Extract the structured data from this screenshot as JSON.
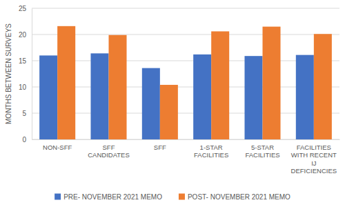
{
  "chart_data": {
    "type": "bar",
    "y_label": "MONTHS BETWEEN SURVEYS",
    "categories": [
      "NON-SFF",
      "SFF CANDIDATES",
      "SFF",
      "1-STAR FACILITIES",
      "5-STAR FACILITIES",
      "FACILITIES WITH RECENT IJ DEFICIENCIES"
    ],
    "series": [
      {
        "name": "PRE- NOVEMBER 2021 MEMO",
        "color": "#4472c4",
        "values": [
          16.0,
          16.4,
          13.6,
          16.2,
          15.9,
          16.1
        ]
      },
      {
        "name": "POST- NOVEMBER 2021 MEMO",
        "color": "#ed7d31",
        "values": [
          21.6,
          19.9,
          10.4,
          20.6,
          21.5,
          20.1
        ]
      }
    ],
    "ylim": [
      0,
      25
    ],
    "yticks": [
      0,
      5,
      10,
      15,
      20,
      25
    ],
    "grid": true,
    "legend": "bottom"
  }
}
